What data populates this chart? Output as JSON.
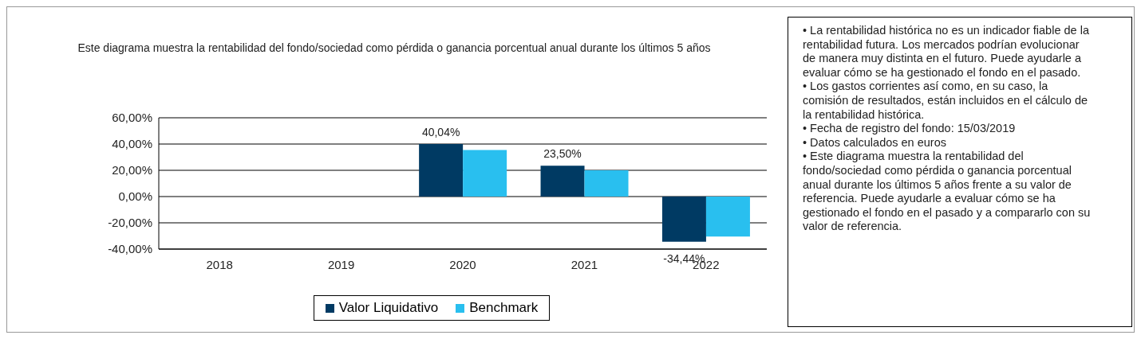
{
  "chart_data": {
    "type": "bar",
    "title": "Este diagrama muestra la rentabilidad del fondo/sociedad como pérdida o ganancia porcentual anual durante los últimos 5 años",
    "categories": [
      "2018",
      "2019",
      "2020",
      "2021",
      "2022"
    ],
    "series": [
      {
        "name": "Valor Liquidativo",
        "color": "#003a63",
        "values": [
          null,
          null,
          40.04,
          23.5,
          -34.44
        ],
        "value_labels": [
          null,
          null,
          "40,04%",
          "23,50%",
          "-34,44%"
        ]
      },
      {
        "name": "Benchmark",
        "color": "#29bfef",
        "values": [
          null,
          null,
          35.5,
          20,
          -30.5
        ]
      }
    ],
    "ylim": [
      -40,
      60
    ],
    "yticks": [
      {
        "value": -40,
        "label": "-40,00%"
      },
      {
        "value": -20,
        "label": "-20,00%"
      },
      {
        "value": 0,
        "label": "0,00%"
      },
      {
        "value": 20,
        "label": "20,00%"
      },
      {
        "value": 40,
        "label": "40,00%"
      },
      {
        "value": 60,
        "label": "60,00%"
      }
    ],
    "grid": "y",
    "legend": "bottom",
    "annotations": [
      "• La rentabilidad histórica no es un indicador fiable de la rentabilidad futura. Los mercados podrían evolucionar de manera muy distinta en el futuro. Puede ayudarle a evaluar cómo se ha gestionado el fondo en el pasado.",
      "• Los gastos corrientes así como, en su caso, la comisión de resultados, están incluidos en el cálculo de la rentabilidad histórica.",
      "• Fecha de registro del fondo: 15/03/2019",
      "• Datos calculados en euros",
      "• Este diagrama muestra la rentabilidad del fondo/sociedad como pérdida o ganancia porcentual anual durante los últimos 5 años frente a su valor de referencia. Puede ayudarle a evaluar cómo se ha gestionado el fondo en el pasado y a compararlo con su valor de referencia."
    ]
  }
}
